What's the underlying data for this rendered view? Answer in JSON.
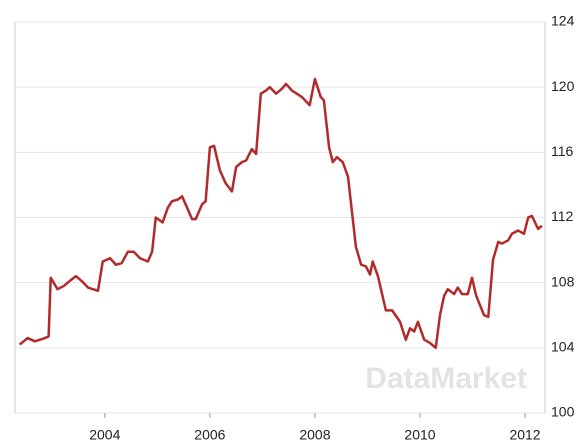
{
  "chart_data": {
    "type": "line",
    "watermark": "DataMarket",
    "x": [
      2002.38,
      2002.53,
      2002.67,
      2002.86,
      2002.93,
      2002.97,
      2003.1,
      2003.22,
      2003.33,
      2003.45,
      2003.56,
      2003.68,
      2003.87,
      2003.96,
      2004.1,
      2004.21,
      2004.32,
      2004.44,
      2004.55,
      2004.67,
      2004.82,
      2004.9,
      2004.97,
      2005.1,
      2005.2,
      2005.28,
      2005.39,
      2005.47,
      2005.54,
      2005.66,
      2005.73,
      2005.85,
      2005.92,
      2006.0,
      2006.08,
      2006.19,
      2006.3,
      2006.42,
      2006.5,
      2006.61,
      2006.69,
      2006.8,
      2006.88,
      2006.97,
      2007.07,
      2007.14,
      2007.26,
      2007.37,
      2007.45,
      2007.56,
      2007.75,
      2007.9,
      2008.0,
      2008.11,
      2008.17,
      2008.27,
      2008.34,
      2008.42,
      2008.53,
      2008.63,
      2008.78,
      2008.88,
      2008.97,
      2009.05,
      2009.1,
      2009.2,
      2009.35,
      2009.47,
      2009.62,
      2009.73,
      2009.81,
      2009.89,
      2009.96,
      2010.08,
      2010.19,
      2010.3,
      2010.38,
      2010.46,
      2010.53,
      2010.65,
      2010.72,
      2010.8,
      2010.91,
      2010.99,
      2011.07,
      2011.22,
      2011.3,
      2011.39,
      2011.49,
      2011.56,
      2011.68,
      2011.75,
      2011.87,
      2011.98,
      2012.06,
      2012.13,
      2012.25,
      2012.32
    ],
    "series": [
      {
        "color": "#b22a2a",
        "values": [
          104.2,
          104.6,
          104.4,
          104.6,
          104.7,
          108.3,
          107.6,
          107.8,
          108.1,
          108.4,
          108.1,
          107.7,
          107.5,
          109.3,
          109.5,
          109.1,
          109.2,
          109.9,
          109.9,
          109.5,
          109.3,
          109.9,
          112.0,
          111.7,
          112.6,
          113.0,
          113.1,
          113.3,
          112.8,
          111.9,
          111.9,
          112.8,
          113.0,
          116.3,
          116.4,
          114.9,
          114.1,
          113.6,
          115.1,
          115.4,
          115.5,
          116.2,
          115.9,
          119.6,
          119.8,
          120.0,
          119.6,
          119.9,
          120.2,
          119.8,
          119.4,
          118.9,
          120.5,
          119.4,
          119.2,
          116.3,
          115.4,
          115.7,
          115.4,
          114.5,
          110.2,
          109.1,
          109.0,
          108.5,
          109.3,
          108.4,
          106.3,
          106.3,
          105.6,
          104.5,
          105.2,
          105.0,
          105.6,
          104.5,
          104.3,
          104.0,
          106.0,
          107.2,
          107.6,
          107.3,
          107.7,
          107.3,
          107.3,
          108.3,
          107.2,
          106.0,
          105.9,
          109.4,
          110.5,
          110.4,
          110.6,
          111.0,
          111.2,
          111.0,
          112.0,
          112.1,
          111.3,
          111.5
        ]
      }
    ],
    "xlim": [
      2002.29,
      2012.38
    ],
    "xticks": [
      2004,
      2006,
      2008,
      2010,
      2012
    ],
    "ylim": [
      100,
      124
    ],
    "yticks": [
      100,
      104,
      108,
      112,
      116,
      120,
      124
    ],
    "grid": true
  }
}
